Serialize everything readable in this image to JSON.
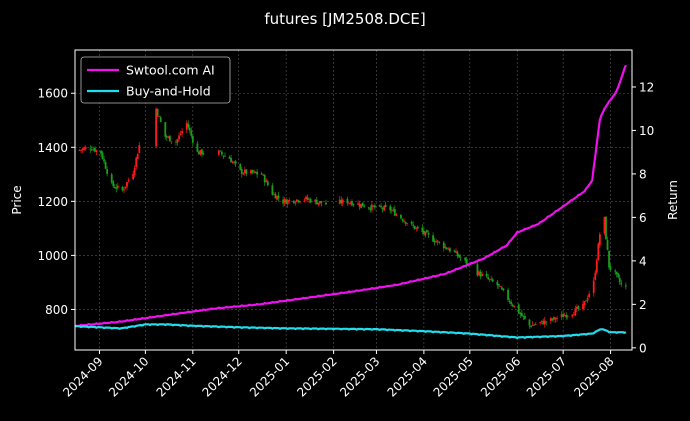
{
  "chart_data": {
    "type": "candlestick-with-line",
    "title": "futures [JM2508.DCE]",
    "ylabel_left": "Price",
    "ylabel_right": "Return",
    "x_tick_labels": [
      "2024-09",
      "2024-10",
      "2024-11",
      "2024-12",
      "2025-01",
      "2025-02",
      "2025-03",
      "2025-04",
      "2025-05",
      "2025-06",
      "2025-07",
      "2025-08"
    ],
    "x_tick_dates": [
      "2024-09-01",
      "2024-10-01",
      "2024-11-01",
      "2024-12-01",
      "2025-01-01",
      "2025-02-01",
      "2025-03-01",
      "2025-04-01",
      "2025-05-01",
      "2025-06-01",
      "2025-07-01",
      "2025-08-01"
    ],
    "xlim": [
      "2024-08-16",
      "2025-08-15"
    ],
    "ylim_left": [
      650,
      1760
    ],
    "ylim_right": [
      -0.1,
      13.7
    ],
    "yticks_left": [
      800,
      1000,
      1200,
      1400,
      1600
    ],
    "yticks_right": [
      0,
      2,
      4,
      6,
      8,
      10,
      12
    ],
    "grid": true,
    "legend_position": "top-left",
    "colors": {
      "up": "#ff1a1a",
      "down": "#1a9f1a",
      "strategy": "#ee11ee",
      "buyhold": "#22ddee",
      "grid": "#555555"
    },
    "price_anchors": [
      [
        "2024-08-19",
        1390
      ],
      [
        "2024-08-26",
        1400
      ],
      [
        "2024-09-02",
        1380
      ],
      [
        "2024-09-09",
        1260
      ],
      [
        "2024-09-16",
        1240
      ],
      [
        "2024-09-23",
        1310
      ],
      [
        "2024-09-30",
        1480
      ],
      [
        "2024-10-07",
        1560
      ],
      [
        "2024-10-14",
        1440
      ],
      [
        "2024-10-21",
        1420
      ],
      [
        "2024-10-28",
        1490
      ],
      [
        "2024-11-04",
        1380
      ],
      [
        "2024-11-18",
        1380
      ],
      [
        "2024-11-25",
        1360
      ],
      [
        "2024-12-02",
        1310
      ],
      [
        "2024-12-16",
        1300
      ],
      [
        "2024-12-23",
        1230
      ],
      [
        "2024-12-30",
        1200
      ],
      [
        "2025-01-13",
        1210
      ],
      [
        "2025-01-27",
        1190
      ],
      [
        "2025-02-10",
        1200
      ],
      [
        "2025-02-24",
        1180
      ],
      [
        "2025-03-10",
        1170
      ],
      [
        "2025-03-24",
        1110
      ],
      [
        "2025-04-07",
        1060
      ],
      [
        "2025-04-21",
        1010
      ],
      [
        "2025-05-05",
        940
      ],
      [
        "2025-05-19",
        890
      ],
      [
        "2025-06-02",
        790
      ],
      [
        "2025-06-09",
        740
      ],
      [
        "2025-06-23",
        760
      ],
      [
        "2025-07-07",
        790
      ],
      [
        "2025-07-14",
        810
      ],
      [
        "2025-07-21",
        900
      ],
      [
        "2025-07-25",
        1080
      ],
      [
        "2025-07-28",
        1120
      ],
      [
        "2025-07-31",
        960
      ],
      [
        "2025-08-04",
        930
      ],
      [
        "2025-08-08",
        890
      ],
      [
        "2025-08-11",
        880
      ]
    ],
    "series": [
      {
        "name": "Swtool.com AI",
        "anchors": [
          [
            "2024-08-16",
            1.0
          ],
          [
            "2024-09-15",
            1.2
          ],
          [
            "2024-10-15",
            1.5
          ],
          [
            "2024-11-15",
            1.8
          ],
          [
            "2024-12-15",
            2.0
          ],
          [
            "2025-01-15",
            2.3
          ],
          [
            "2025-02-15",
            2.6
          ],
          [
            "2025-03-15",
            2.9
          ],
          [
            "2025-04-15",
            3.4
          ],
          [
            "2025-05-10",
            4.1
          ],
          [
            "2025-05-25",
            4.7
          ],
          [
            "2025-06-01",
            5.3
          ],
          [
            "2025-06-15",
            5.7
          ],
          [
            "2025-07-01",
            6.5
          ],
          [
            "2025-07-15",
            7.2
          ],
          [
            "2025-07-20",
            7.7
          ],
          [
            "2025-07-25",
            10.5
          ],
          [
            "2025-07-28",
            11.0
          ],
          [
            "2025-08-05",
            11.8
          ],
          [
            "2025-08-11",
            13.0
          ]
        ]
      },
      {
        "name": "Buy-and-Hold",
        "anchors": [
          [
            "2024-08-16",
            1.0
          ],
          [
            "2024-09-01",
            0.95
          ],
          [
            "2024-09-15",
            0.9
          ],
          [
            "2024-10-01",
            1.08
          ],
          [
            "2024-10-15",
            1.08
          ],
          [
            "2024-11-01",
            1.02
          ],
          [
            "2024-12-01",
            0.95
          ],
          [
            "2025-01-01",
            0.9
          ],
          [
            "2025-02-01",
            0.88
          ],
          [
            "2025-03-01",
            0.86
          ],
          [
            "2025-04-01",
            0.77
          ],
          [
            "2025-05-01",
            0.66
          ],
          [
            "2025-06-01",
            0.48
          ],
          [
            "2025-07-01",
            0.55
          ],
          [
            "2025-07-20",
            0.66
          ],
          [
            "2025-07-26",
            0.88
          ],
          [
            "2025-08-01",
            0.72
          ],
          [
            "2025-08-11",
            0.72
          ]
        ]
      }
    ]
  }
}
